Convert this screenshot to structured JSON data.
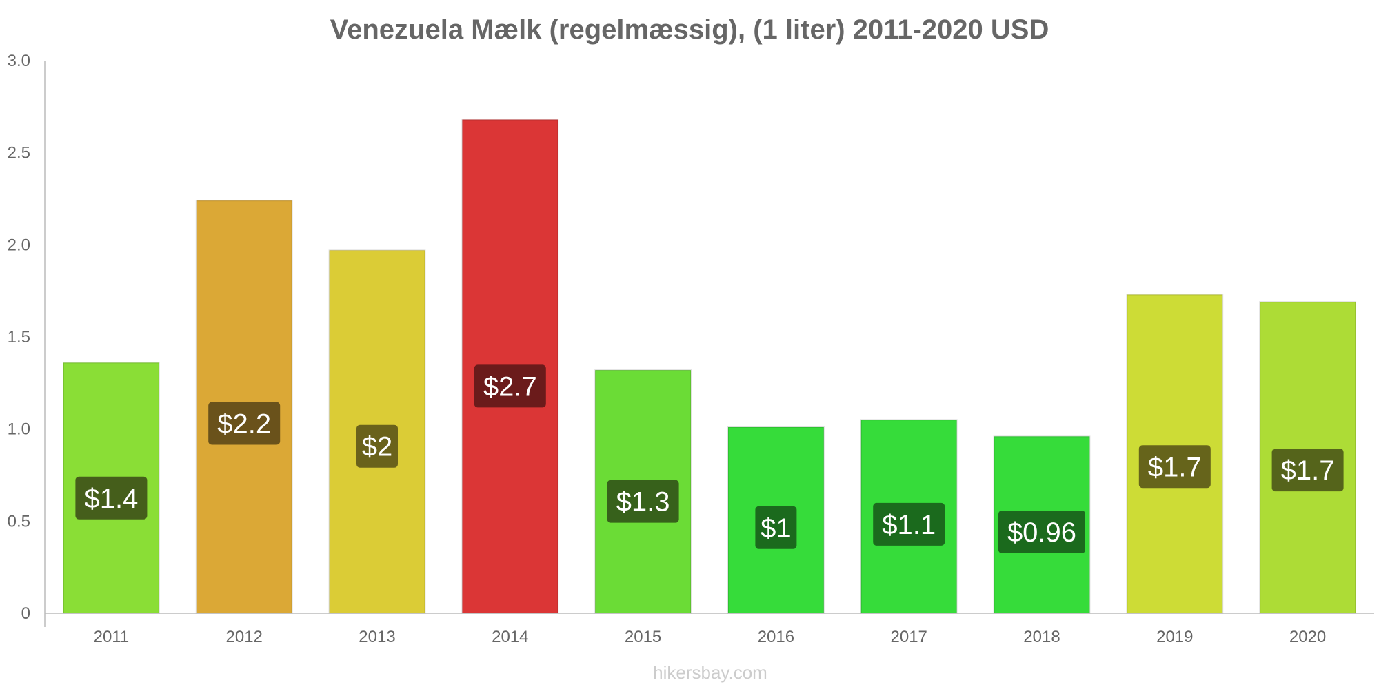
{
  "chart_data": {
    "type": "bar",
    "title": "Venezuela Mælk (regelmæssig), (1 liter) 2011-2020 USD",
    "xlabel": "",
    "ylabel": "",
    "ylim": [
      0,
      3.0
    ],
    "yticks": [
      "0",
      "0.5",
      "1.0",
      "1.5",
      "2.0",
      "2.5",
      "3.0"
    ],
    "categories": [
      "2011",
      "2012",
      "2013",
      "2014",
      "2015",
      "2016",
      "2017",
      "2018",
      "2019",
      "2020"
    ],
    "values": [
      1.36,
      2.24,
      1.97,
      2.68,
      1.32,
      1.01,
      1.05,
      0.96,
      1.73,
      1.69
    ],
    "data_labels": [
      "$1.4",
      "$2.2",
      "$2",
      "$2.7",
      "$1.3",
      "$1",
      "$1.1",
      "$0.96",
      "$1.7",
      "$1.7"
    ],
    "bar_colors": [
      "#8ade36",
      "#dba836",
      "#dbcc36",
      "#db3636",
      "#6bdc36",
      "#36dc3a",
      "#36dc3a",
      "#36dc3a",
      "#cddc36",
      "#addc36"
    ],
    "label_bg_colors": [
      "#455e1b",
      "#6a521b",
      "#6a621b",
      "#6b1b1b",
      "#37611b",
      "#1b6a1d",
      "#1b6a1d",
      "#1b6a1d",
      "#66641b",
      "#55641b"
    ],
    "grid": false,
    "legend": "none"
  },
  "watermark": "hikersbay.com"
}
